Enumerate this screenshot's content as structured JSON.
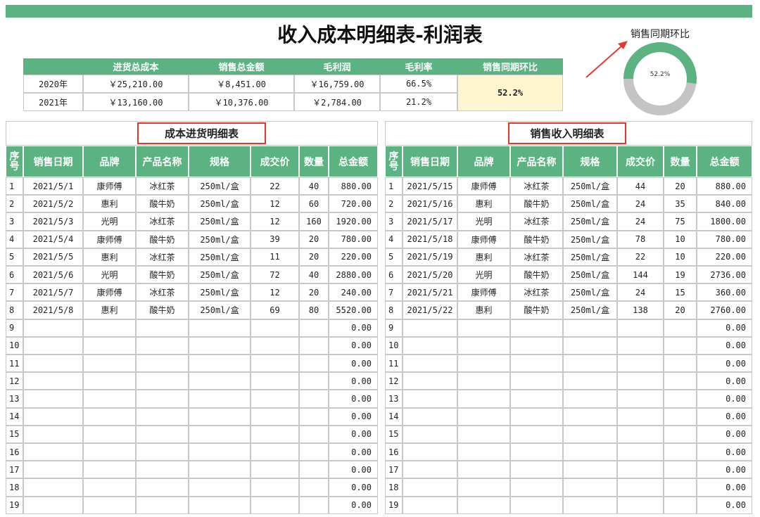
{
  "header": {
    "title": "收入成本明细表-利润表"
  },
  "summary": {
    "headers": [
      "进货总成本",
      "销售总金额",
      "毛利润",
      "毛利率",
      "销售同期环比"
    ],
    "rows": [
      [
        "2020年",
        "￥25,210.00",
        "￥8,451.00",
        "￥16,759.00",
        "66.5%"
      ],
      [
        "2021年",
        "￥13,160.00",
        "￥10,376.00",
        "￥2,784.00",
        "21.2%"
      ]
    ],
    "ratio": "52.2%"
  },
  "donut": {
    "title": "销售同期环比",
    "values": [
      52.2
    ],
    "value_labels": [
      "52.2%"
    ],
    "color": "#5cb382",
    "track_color": "#c4c4c4"
  },
  "tables": [
    {
      "title": "成本进货明细表",
      "headers": [
        "序号",
        "销售日期",
        "品牌",
        "产品名称",
        "规格",
        "成交价",
        "数量",
        "总金额"
      ],
      "rows": [
        [
          "1",
          "2021/5/1",
          "康师傅",
          "冰红茶",
          "250ml/盒",
          "22",
          "40",
          "880.00"
        ],
        [
          "2",
          "2021/5/2",
          "惠利",
          "酸牛奶",
          "250ml/盒",
          "12",
          "60",
          "720.00"
        ],
        [
          "3",
          "2021/5/3",
          "光明",
          "冰红茶",
          "250ml/盒",
          "12",
          "160",
          "1920.00"
        ],
        [
          "4",
          "2021/5/4",
          "康师傅",
          "酸牛奶",
          "250ml/盒",
          "39",
          "20",
          "780.00"
        ],
        [
          "5",
          "2021/5/5",
          "惠利",
          "冰红茶",
          "250ml/盒",
          "11",
          "20",
          "220.00"
        ],
        [
          "6",
          "2021/5/6",
          "光明",
          "酸牛奶",
          "250ml/盒",
          "72",
          "40",
          "2880.00"
        ],
        [
          "7",
          "2021/5/7",
          "康师傅",
          "冰红茶",
          "250ml/盒",
          "12",
          "20",
          "240.00"
        ],
        [
          "8",
          "2021/5/8",
          "惠利",
          "酸牛奶",
          "250ml/盒",
          "69",
          "80",
          "5520.00"
        ],
        [
          "9",
          null,
          null,
          null,
          null,
          null,
          null,
          "0.00"
        ],
        [
          "10",
          null,
          null,
          null,
          null,
          null,
          null,
          "0.00"
        ],
        [
          "11",
          null,
          null,
          null,
          null,
          null,
          null,
          "0.00"
        ],
        [
          "12",
          null,
          null,
          null,
          null,
          null,
          null,
          "0.00"
        ],
        [
          "13",
          null,
          null,
          null,
          null,
          null,
          null,
          "0.00"
        ],
        [
          "14",
          null,
          null,
          null,
          null,
          null,
          null,
          "0.00"
        ],
        [
          "15",
          null,
          null,
          null,
          null,
          null,
          null,
          "0.00"
        ],
        [
          "16",
          null,
          null,
          null,
          null,
          null,
          null,
          "0.00"
        ],
        [
          "17",
          null,
          null,
          null,
          null,
          null,
          null,
          "0.00"
        ],
        [
          "18",
          null,
          null,
          null,
          null,
          null,
          null,
          "0.00"
        ],
        [
          "19",
          null,
          null,
          null,
          null,
          null,
          null,
          "0.00"
        ]
      ]
    },
    {
      "title": "销售收入明细表",
      "headers": [
        "序号",
        "销售日期",
        "品牌",
        "产品名称",
        "规格",
        "成交价",
        "数量",
        "总金额"
      ],
      "rows": [
        [
          "1",
          "2021/5/15",
          "康师傅",
          "冰红茶",
          "250ml/盒",
          "44",
          "20",
          "880.00"
        ],
        [
          "2",
          "2021/5/16",
          "惠利",
          "酸牛奶",
          "250ml/盒",
          "24",
          "35",
          "840.00"
        ],
        [
          "3",
          "2021/5/17",
          "光明",
          "冰红茶",
          "250ml/盒",
          "24",
          "75",
          "1800.00"
        ],
        [
          "4",
          "2021/5/18",
          "康师傅",
          "酸牛奶",
          "250ml/盒",
          "78",
          "10",
          "780.00"
        ],
        [
          "5",
          "2021/5/19",
          "惠利",
          "冰红茶",
          "250ml/盒",
          "22",
          "10",
          "220.00"
        ],
        [
          "6",
          "2021/5/20",
          "光明",
          "酸牛奶",
          "250ml/盒",
          "144",
          "19",
          "2736.00"
        ],
        [
          "7",
          "2021/5/21",
          "康师傅",
          "冰红茶",
          "250ml/盒",
          "24",
          "15",
          "360.00"
        ],
        [
          "8",
          "2021/5/22",
          "惠利",
          "酸牛奶",
          "250ml/盒",
          "138",
          "20",
          "2760.00"
        ],
        [
          "9",
          null,
          null,
          null,
          null,
          null,
          null,
          "0.00"
        ],
        [
          "10",
          null,
          null,
          null,
          null,
          null,
          null,
          "0.00"
        ],
        [
          "11",
          null,
          null,
          null,
          null,
          null,
          null,
          "0.00"
        ],
        [
          "12",
          null,
          null,
          null,
          null,
          null,
          null,
          "0.00"
        ],
        [
          "13",
          null,
          null,
          null,
          null,
          null,
          null,
          "0.00"
        ],
        [
          "14",
          null,
          null,
          null,
          null,
          null,
          null,
          "0.00"
        ],
        [
          "15",
          null,
          null,
          null,
          null,
          null,
          null,
          "0.00"
        ],
        [
          "16",
          null,
          null,
          null,
          null,
          null,
          null,
          "0.00"
        ],
        [
          "17",
          null,
          null,
          null,
          null,
          null,
          null,
          "0.00"
        ],
        [
          "18",
          null,
          null,
          null,
          null,
          null,
          null,
          "0.00"
        ],
        [
          "19",
          null,
          null,
          null,
          null,
          null,
          null,
          "0.00"
        ]
      ]
    }
  ]
}
